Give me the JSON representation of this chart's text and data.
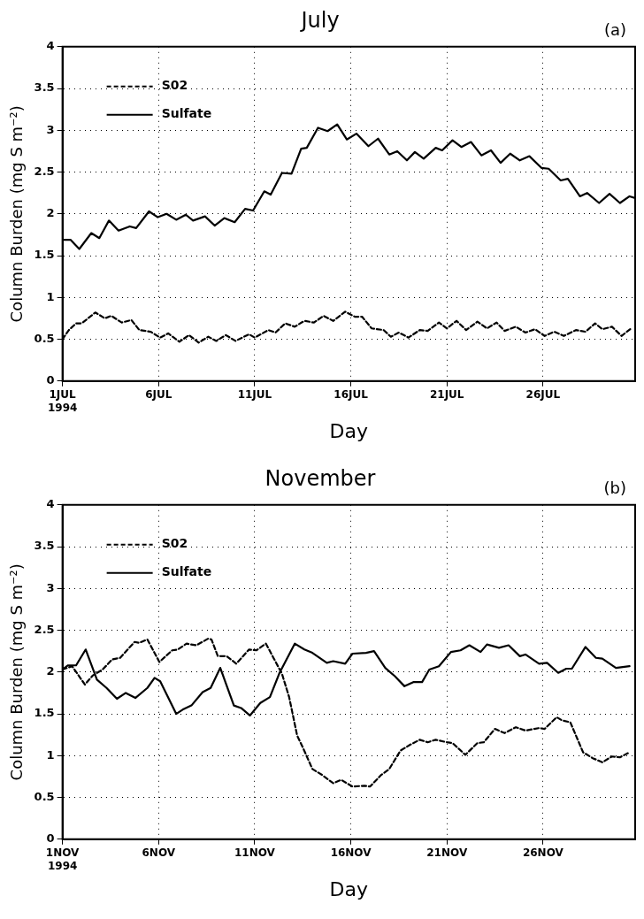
{
  "chart_data": [
    {
      "type": "line",
      "title": "July",
      "xlabel": "Day",
      "ylabel": "Column Burden (mg S m⁻²)",
      "annotations": [
        "(a)"
      ],
      "xlim": [
        "1994-07-01T00:00",
        "1994-07-30T19:00"
      ],
      "xticks": [
        {
          "value": "1994-07-01",
          "label": "1JUL\n1994"
        },
        {
          "value": "1994-07-06",
          "label": "6JUL"
        },
        {
          "value": "1994-07-11",
          "label": "11JUL"
        },
        {
          "value": "1994-07-16",
          "label": "16JUL"
        },
        {
          "value": "1994-07-21",
          "label": "21JUL"
        },
        {
          "value": "1994-07-26",
          "label": "26JUL"
        }
      ],
      "ylim": [
        0,
        4
      ],
      "yticks": [
        0,
        0.5,
        1,
        1.5,
        2,
        2.5,
        3,
        3.5,
        4
      ],
      "grid": true,
      "legend": "top left",
      "marker": "none",
      "series": [
        {
          "name": "S02",
          "color": "#000000",
          "line_style": "dashed",
          "x": [
            "1994-07-01T00:00",
            "1994-07-01T08:00",
            "1994-07-01T17:00",
            "1994-07-02T00:00",
            "1994-07-02T17:00",
            "1994-07-03T05:00",
            "1994-07-03T13:00",
            "1994-07-04T02:00",
            "1994-07-04T14:00",
            "1994-07-05T00:00",
            "1994-07-05T14:00",
            "1994-07-06T02:00",
            "1994-07-06T12:00",
            "1994-07-07T02:00",
            "1994-07-07T14:00",
            "1994-07-08T02:00",
            "1994-07-08T14:00",
            "1994-07-09T00:00",
            "1994-07-09T12:00",
            "1994-07-10T00:00",
            "1994-07-10T17:00",
            "1994-07-11T00:00",
            "1994-07-11T17:00",
            "1994-07-12T02:00",
            "1994-07-12T14:00",
            "1994-07-13T02:00",
            "1994-07-13T14:00",
            "1994-07-14T02:00",
            "1994-07-14T14:00",
            "1994-07-15T02:00",
            "1994-07-15T17:00",
            "1994-07-16T05:00",
            "1994-07-16T14:00",
            "1994-07-17T02:00",
            "1994-07-17T17:00",
            "1994-07-18T02:00",
            "1994-07-18T12:00",
            "1994-07-19T00:00",
            "1994-07-19T14:00",
            "1994-07-20T00:00",
            "1994-07-20T14:00",
            "1994-07-21T00:00",
            "1994-07-21T12:00",
            "1994-07-22T00:00",
            "1994-07-22T14:00",
            "1994-07-23T02:00",
            "1994-07-23T14:00",
            "1994-07-24T00:00",
            "1994-07-24T14:00",
            "1994-07-25T02:00",
            "1994-07-25T14:00",
            "1994-07-26T02:00",
            "1994-07-26T14:00",
            "1994-07-27T02:00",
            "1994-07-27T17:00",
            "1994-07-28T05:00",
            "1994-07-28T17:00",
            "1994-07-29T02:00",
            "1994-07-29T14:00",
            "1994-07-30T02:00",
            "1994-07-30T14:00"
          ],
          "values": [
            0.5,
            0.61,
            0.69,
            0.69,
            0.82,
            0.75,
            0.78,
            0.7,
            0.73,
            0.61,
            0.59,
            0.52,
            0.57,
            0.47,
            0.55,
            0.46,
            0.53,
            0.48,
            0.55,
            0.48,
            0.56,
            0.52,
            0.61,
            0.58,
            0.69,
            0.65,
            0.72,
            0.7,
            0.78,
            0.72,
            0.83,
            0.77,
            0.77,
            0.63,
            0.61,
            0.53,
            0.58,
            0.52,
            0.61,
            0.6,
            0.7,
            0.63,
            0.72,
            0.61,
            0.71,
            0.63,
            0.7,
            0.6,
            0.65,
            0.58,
            0.62,
            0.54,
            0.59,
            0.54,
            0.61,
            0.59,
            0.69,
            0.62,
            0.65,
            0.54,
            0.63
          ]
        },
        {
          "name": "Sulfate",
          "color": "#000000",
          "line_style": "solid",
          "x": [
            "1994-07-01T00:00",
            "1994-07-01T10:00",
            "1994-07-01T21:00",
            "1994-07-02T12:00",
            "1994-07-02T22:00",
            "1994-07-03T10:00",
            "1994-07-03T22:00",
            "1994-07-04T12:00",
            "1994-07-04T20:00",
            "1994-07-05T12:00",
            "1994-07-05T23:00",
            "1994-07-06T10:00",
            "1994-07-06T22:00",
            "1994-07-07T10:00",
            "1994-07-07T19:00",
            "1994-07-08T10:00",
            "1994-07-08T22:00",
            "1994-07-09T10:00",
            "1994-07-09T23:00",
            "1994-07-10T12:00",
            "1994-07-10T22:00",
            "1994-07-11T12:00",
            "1994-07-11T20:00",
            "1994-07-12T10:00",
            "1994-07-12T22:00",
            "1994-07-13T10:00",
            "1994-07-13T17:00",
            "1994-07-14T07:00",
            "1994-07-14T19:00",
            "1994-07-15T07:00",
            "1994-07-15T19:00",
            "1994-07-16T07:00",
            "1994-07-16T22:00",
            "1994-07-17T10:00",
            "1994-07-18T00:00",
            "1994-07-18T10:00",
            "1994-07-18T22:00",
            "1994-07-19T08:00",
            "1994-07-19T19:00",
            "1994-07-20T10:00",
            "1994-07-20T18:00",
            "1994-07-21T07:00",
            "1994-07-21T18:00",
            "1994-07-22T06:00",
            "1994-07-22T19:00",
            "1994-07-23T07:00",
            "1994-07-23T19:00",
            "1994-07-24T07:00",
            "1994-07-24T19:00",
            "1994-07-25T07:00",
            "1994-07-25T22:00",
            "1994-07-26T07:00",
            "1994-07-26T22:00",
            "1994-07-27T07:00",
            "1994-07-27T22:00",
            "1994-07-28T07:00",
            "1994-07-28T22:00",
            "1994-07-29T11:00",
            "1994-07-30T00:00",
            "1994-07-30T12:00",
            "1994-07-30T19:00"
          ],
          "values": [
            1.69,
            1.69,
            1.58,
            1.77,
            1.71,
            1.92,
            1.8,
            1.85,
            1.83,
            2.03,
            1.96,
            2.0,
            1.93,
            1.99,
            1.92,
            1.97,
            1.86,
            1.95,
            1.9,
            2.06,
            2.04,
            2.27,
            2.23,
            2.49,
            2.48,
            2.78,
            2.79,
            3.03,
            2.99,
            3.07,
            2.89,
            2.96,
            2.81,
            2.9,
            2.71,
            2.75,
            2.64,
            2.74,
            2.66,
            2.79,
            2.76,
            2.88,
            2.8,
            2.86,
            2.7,
            2.76,
            2.61,
            2.72,
            2.64,
            2.69,
            2.55,
            2.54,
            2.4,
            2.42,
            2.21,
            2.25,
            2.13,
            2.24,
            2.13,
            2.21,
            2.19
          ]
        }
      ]
    },
    {
      "type": "line",
      "title": "November",
      "xlabel": "Day",
      "ylabel": "Column Burden (mg S m⁻²)",
      "annotations": [
        "(b)"
      ],
      "xlim": [
        "1994-11-01T00:00",
        "1994-11-30T19:00"
      ],
      "xticks": [
        {
          "value": "1994-11-01",
          "label": "1NOV\n1994"
        },
        {
          "value": "1994-11-06",
          "label": "6NOV"
        },
        {
          "value": "1994-11-11",
          "label": "11NOV"
        },
        {
          "value": "1994-11-16",
          "label": "16NOV"
        },
        {
          "value": "1994-11-21",
          "label": "21NOV"
        },
        {
          "value": "1994-11-26",
          "label": "26NOV"
        }
      ],
      "ylim": [
        0,
        4
      ],
      "yticks": [
        0,
        0.5,
        1,
        1.5,
        2,
        2.5,
        3,
        3.5,
        4
      ],
      "grid": true,
      "legend": "top left",
      "marker": "none",
      "series": [
        {
          "name": "S02",
          "color": "#000000",
          "line_style": "dashed",
          "x": [
            "1994-11-01T00:00",
            "1994-11-01T12:00",
            "1994-11-02T04:00",
            "1994-11-02T14:00",
            "1994-11-03T02:00",
            "1994-11-03T14:00",
            "1994-11-04T00:00",
            "1994-11-04T18:00",
            "1994-11-05T00:00",
            "1994-11-05T10:00",
            "1994-11-06T01:00",
            "1994-11-06T17:00",
            "1994-11-07T00:00",
            "1994-11-07T11:00",
            "1994-11-07T23:00",
            "1994-11-08T14:00",
            "1994-11-08T18:00",
            "1994-11-09T02:00",
            "1994-11-09T13:00",
            "1994-11-10T01:00",
            "1994-11-10T17:00",
            "1994-11-11T02:00",
            "1994-11-11T14:00",
            "1994-11-12T00:00",
            "1994-11-12T10:00",
            "1994-11-12T19:00",
            "1994-11-13T05:00",
            "1994-11-13T12:00",
            "1994-11-14T00:00",
            "1994-11-14T12:00",
            "1994-11-15T02:00",
            "1994-11-15T12:00",
            "1994-11-16T02:00",
            "1994-11-16T17:00",
            "1994-11-17T00:00",
            "1994-11-17T14:00",
            "1994-11-18T00:00",
            "1994-11-18T14:00",
            "1994-11-19T02:00",
            "1994-11-19T14:00",
            "1994-11-20T00:00",
            "1994-11-20T10:00",
            "1994-11-21T00:00",
            "1994-11-21T07:00",
            "1994-11-21T23:00",
            "1994-11-22T14:00",
            "1994-11-22T22:00",
            "1994-11-23T12:00",
            "1994-11-24T00:00",
            "1994-11-24T14:00",
            "1994-11-25T02:00",
            "1994-11-25T19:00",
            "1994-11-26T02:00",
            "1994-11-26T17:00",
            "1994-11-27T00:00",
            "1994-11-27T10:00",
            "1994-11-28T02:00",
            "1994-11-28T14:00",
            "1994-11-29T02:00",
            "1994-11-29T14:00",
            "1994-11-30T00:00",
            "1994-11-30T12:00"
          ],
          "values": [
            2.03,
            2.07,
            1.85,
            1.96,
            2.03,
            2.15,
            2.17,
            2.36,
            2.35,
            2.39,
            2.12,
            2.26,
            2.27,
            2.34,
            2.32,
            2.4,
            2.39,
            2.19,
            2.19,
            2.1,
            2.27,
            2.26,
            2.34,
            2.16,
            1.98,
            1.7,
            1.24,
            1.1,
            0.84,
            0.77,
            0.67,
            0.71,
            0.63,
            0.64,
            0.63,
            0.77,
            0.84,
            1.06,
            1.13,
            1.19,
            1.16,
            1.19,
            1.16,
            1.15,
            1.01,
            1.15,
            1.16,
            1.32,
            1.27,
            1.34,
            1.3,
            1.33,
            1.32,
            1.46,
            1.42,
            1.4,
            1.04,
            0.97,
            0.92,
            0.99,
            0.98,
            1.04
          ]
        },
        {
          "name": "Sulfate",
          "color": "#000000",
          "line_style": "solid",
          "x": [
            "1994-11-01T00:00",
            "1994-11-01T07:00",
            "1994-11-01T17:00",
            "1994-11-02T05:00",
            "1994-11-02T19:00",
            "1994-11-03T07:00",
            "1994-11-03T20:00",
            "1994-11-04T07:00",
            "1994-11-04T19:00",
            "1994-11-05T10:00",
            "1994-11-05T19:00",
            "1994-11-06T02:00",
            "1994-11-06T22:00",
            "1994-11-07T06:00",
            "1994-11-07T17:00",
            "1994-11-08T07:00",
            "1994-11-08T17:00",
            "1994-11-09T05:00",
            "1994-11-09T22:00",
            "1994-11-10T07:00",
            "1994-11-10T18:00",
            "1994-11-11T07:00",
            "1994-11-11T19:00",
            "1994-11-12T07:00",
            "1994-11-13T02:00",
            "1994-11-13T14:00",
            "1994-11-14T00:00",
            "1994-11-14T18:00",
            "1994-11-15T02:00",
            "1994-11-15T17:00",
            "1994-11-16T02:00",
            "1994-11-16T19:00",
            "1994-11-17T05:00",
            "1994-11-17T19:00",
            "1994-11-18T07:00",
            "1994-11-18T19:00",
            "1994-11-19T06:00",
            "1994-11-19T17:00",
            "1994-11-20T02:00",
            "1994-11-20T14:00",
            "1994-11-21T05:00",
            "1994-11-21T17:00",
            "1994-11-22T04:00",
            "1994-11-22T18:00",
            "1994-11-23T02:00",
            "1994-11-23T17:00",
            "1994-11-24T05:00",
            "1994-11-24T19:00",
            "1994-11-25T02:00",
            "1994-11-25T19:00",
            "1994-11-26T05:00",
            "1994-11-26T19:00",
            "1994-11-27T05:00",
            "1994-11-27T12:00",
            "1994-11-28T05:00",
            "1994-11-28T18:00",
            "1994-11-29T02:00",
            "1994-11-29T19:00",
            "1994-11-30T12:00"
          ],
          "values": [
            2.03,
            2.08,
            2.08,
            2.27,
            1.91,
            1.81,
            1.68,
            1.75,
            1.69,
            1.81,
            1.93,
            1.89,
            1.5,
            1.55,
            1.6,
            1.76,
            1.81,
            2.05,
            1.6,
            1.57,
            1.48,
            1.63,
            1.7,
            1.99,
            2.34,
            2.27,
            2.23,
            2.11,
            2.13,
            2.1,
            2.22,
            2.23,
            2.25,
            2.05,
            1.95,
            1.83,
            1.88,
            1.88,
            2.03,
            2.07,
            2.24,
            2.26,
            2.32,
            2.24,
            2.33,
            2.29,
            2.32,
            2.19,
            2.21,
            2.1,
            2.11,
            1.99,
            2.04,
            2.04,
            2.3,
            2.17,
            2.16,
            2.05,
            2.07
          ]
        }
      ]
    }
  ]
}
